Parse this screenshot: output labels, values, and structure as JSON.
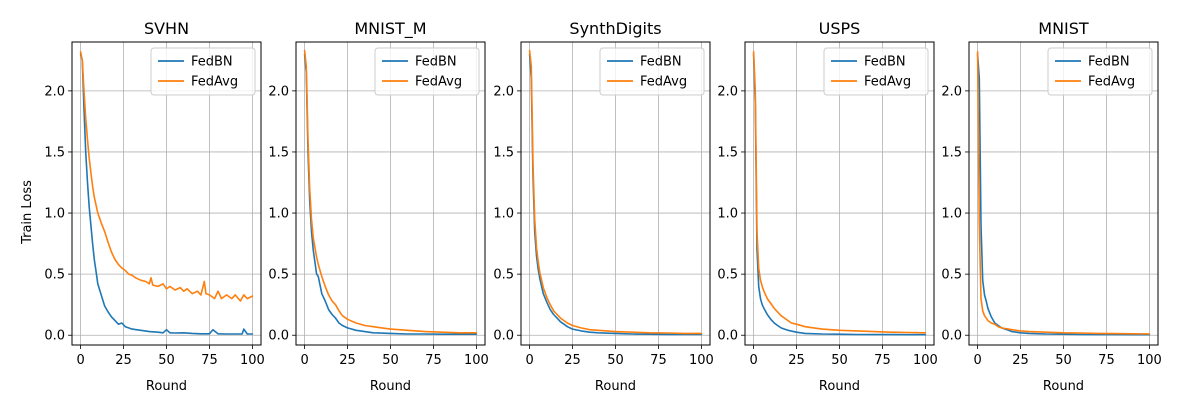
{
  "figure": {
    "ylabel": "Train Loss",
    "xlabel": "Round",
    "colors": {
      "FedBN": "#1f77b4",
      "FedAvg": "#ff7f0e"
    },
    "legend_placement": "top-right",
    "grid": true
  },
  "chart_data": [
    {
      "type": "line",
      "title": "SVHN",
      "xlabel": "Round",
      "ylabel": "Train Loss",
      "xlim": [
        -5,
        105
      ],
      "ylim": [
        -0.08,
        2.4
      ],
      "xticks": [
        0,
        25,
        50,
        75,
        100
      ],
      "yticks": [
        0.0,
        0.5,
        1.0,
        1.5,
        2.0
      ],
      "xtick_labels": [
        "0",
        "25",
        "50",
        "75",
        "100"
      ],
      "ytick_labels": [
        "0.0",
        "0.5",
        "1.0",
        "1.5",
        "2.0"
      ],
      "series": [
        {
          "name": "FedBN",
          "color": "#1f77b4",
          "x": [
            0,
            1,
            2,
            3,
            4,
            5,
            6,
            7,
            8,
            9,
            10,
            12,
            14,
            16,
            18,
            20,
            22,
            24,
            26,
            30,
            35,
            40,
            45,
            48,
            50,
            52,
            55,
            60,
            65,
            70,
            75,
            77,
            80,
            85,
            90,
            94,
            95,
            97,
            100
          ],
          "y": [
            2.3,
            2.25,
            1.85,
            1.5,
            1.25,
            1.05,
            0.9,
            0.75,
            0.62,
            0.52,
            0.42,
            0.33,
            0.24,
            0.19,
            0.15,
            0.12,
            0.09,
            0.1,
            0.07,
            0.05,
            0.04,
            0.03,
            0.025,
            0.02,
            0.045,
            0.02,
            0.018,
            0.02,
            0.015,
            0.012,
            0.012,
            0.045,
            0.012,
            0.01,
            0.01,
            0.01,
            0.05,
            0.01,
            0.01
          ]
        },
        {
          "name": "FedAvg",
          "color": "#ff7f0e",
          "x": [
            0,
            1,
            2,
            3,
            4,
            5,
            6,
            7,
            8,
            10,
            12,
            14,
            16,
            18,
            20,
            22,
            24,
            26,
            28,
            30,
            32,
            35,
            38,
            40,
            41,
            42,
            45,
            48,
            50,
            52,
            55,
            58,
            60,
            62,
            65,
            68,
            70,
            72,
            73,
            75,
            78,
            80,
            82,
            85,
            88,
            90,
            93,
            95,
            97,
            100
          ],
          "y": [
            2.32,
            2.25,
            2.0,
            1.78,
            1.6,
            1.45,
            1.33,
            1.22,
            1.13,
            1.0,
            0.92,
            0.85,
            0.76,
            0.68,
            0.62,
            0.58,
            0.55,
            0.53,
            0.5,
            0.49,
            0.47,
            0.45,
            0.44,
            0.42,
            0.47,
            0.41,
            0.4,
            0.42,
            0.38,
            0.4,
            0.37,
            0.39,
            0.36,
            0.38,
            0.34,
            0.36,
            0.33,
            0.44,
            0.34,
            0.33,
            0.3,
            0.36,
            0.3,
            0.33,
            0.3,
            0.33,
            0.28,
            0.33,
            0.3,
            0.32
          ]
        }
      ]
    },
    {
      "type": "line",
      "title": "MNIST_M",
      "xlabel": "Round",
      "ylabel": "",
      "xlim": [
        -5,
        105
      ],
      "ylim": [
        -0.08,
        2.4
      ],
      "xticks": [
        0,
        25,
        50,
        75,
        100
      ],
      "yticks": [
        0.0,
        0.5,
        1.0,
        1.5,
        2.0
      ],
      "xtick_labels": [
        "0",
        "25",
        "50",
        "75",
        "100"
      ],
      "ytick_labels": [
        "0.0",
        "0.5",
        "1.0",
        "1.5",
        "2.0"
      ],
      "series": [
        {
          "name": "FedBN",
          "color": "#1f77b4",
          "x": [
            0,
            1,
            2,
            3,
            4,
            5,
            6,
            7,
            8,
            10,
            12,
            14,
            16,
            18,
            20,
            22,
            25,
            30,
            35,
            40,
            50,
            60,
            70,
            80,
            90,
            100
          ],
          "y": [
            2.3,
            2.15,
            1.5,
            1.1,
            0.85,
            0.7,
            0.6,
            0.5,
            0.48,
            0.34,
            0.28,
            0.21,
            0.17,
            0.14,
            0.1,
            0.08,
            0.06,
            0.04,
            0.03,
            0.02,
            0.015,
            0.01,
            0.01,
            0.008,
            0.008,
            0.008
          ]
        },
        {
          "name": "FedAvg",
          "color": "#ff7f0e",
          "x": [
            0,
            1,
            2,
            3,
            4,
            5,
            6,
            7,
            8,
            10,
            12,
            14,
            16,
            18,
            20,
            22,
            25,
            30,
            35,
            40,
            45,
            50,
            60,
            70,
            80,
            90,
            95,
            100
          ],
          "y": [
            2.33,
            2.2,
            1.6,
            1.2,
            0.95,
            0.8,
            0.72,
            0.64,
            0.58,
            0.48,
            0.4,
            0.33,
            0.28,
            0.25,
            0.2,
            0.16,
            0.13,
            0.1,
            0.08,
            0.07,
            0.06,
            0.05,
            0.04,
            0.03,
            0.025,
            0.02,
            0.02,
            0.02
          ]
        }
      ]
    },
    {
      "type": "line",
      "title": "SynthDigits",
      "xlabel": "Round",
      "ylabel": "",
      "xlim": [
        -5,
        105
      ],
      "ylim": [
        -0.08,
        2.4
      ],
      "xticks": [
        0,
        25,
        50,
        75,
        100
      ],
      "yticks": [
        0.0,
        0.5,
        1.0,
        1.5,
        2.0
      ],
      "xtick_labels": [
        "0",
        "25",
        "50",
        "75",
        "100"
      ],
      "ytick_labels": [
        "0.0",
        "0.5",
        "1.0",
        "1.5",
        "2.0"
      ],
      "series": [
        {
          "name": "FedBN",
          "color": "#1f77b4",
          "x": [
            0,
            1,
            2,
            3,
            4,
            5,
            6,
            7,
            8,
            10,
            12,
            14,
            16,
            18,
            20,
            22,
            25,
            30,
            35,
            40,
            50,
            60,
            70,
            80,
            90,
            100
          ],
          "y": [
            2.3,
            2.1,
            1.3,
            0.85,
            0.65,
            0.54,
            0.46,
            0.4,
            0.34,
            0.27,
            0.21,
            0.17,
            0.14,
            0.11,
            0.09,
            0.07,
            0.05,
            0.035,
            0.025,
            0.02,
            0.015,
            0.01,
            0.008,
            0.007,
            0.006,
            0.006
          ]
        },
        {
          "name": "FedAvg",
          "color": "#ff7f0e",
          "x": [
            0,
            1,
            2,
            3,
            4,
            5,
            6,
            7,
            8,
            10,
            12,
            14,
            16,
            18,
            20,
            22,
            25,
            30,
            35,
            40,
            50,
            60,
            70,
            80,
            90,
            100
          ],
          "y": [
            2.33,
            2.2,
            1.4,
            0.95,
            0.72,
            0.6,
            0.51,
            0.45,
            0.39,
            0.31,
            0.25,
            0.2,
            0.17,
            0.14,
            0.12,
            0.1,
            0.08,
            0.06,
            0.045,
            0.04,
            0.03,
            0.025,
            0.02,
            0.018,
            0.015,
            0.015
          ]
        }
      ]
    },
    {
      "type": "line",
      "title": "USPS",
      "xlabel": "Round",
      "ylabel": "",
      "xlim": [
        -5,
        105
      ],
      "ylim": [
        -0.08,
        2.4
      ],
      "xticks": [
        0,
        25,
        50,
        75,
        100
      ],
      "yticks": [
        0.0,
        0.5,
        1.0,
        1.5,
        2.0
      ],
      "xtick_labels": [
        "0",
        "25",
        "50",
        "75",
        "100"
      ],
      "ytick_labels": [
        "0.0",
        "0.5",
        "1.0",
        "1.5",
        "2.0"
      ],
      "series": [
        {
          "name": "FedBN",
          "color": "#1f77b4",
          "x": [
            0,
            1,
            2,
            3,
            4,
            5,
            6,
            8,
            10,
            12,
            14,
            16,
            18,
            20,
            25,
            30,
            40,
            50,
            60,
            70,
            80,
            90,
            100
          ],
          "y": [
            2.3,
            1.9,
            0.7,
            0.4,
            0.3,
            0.25,
            0.22,
            0.17,
            0.13,
            0.1,
            0.08,
            0.06,
            0.05,
            0.04,
            0.025,
            0.015,
            0.01,
            0.008,
            0.006,
            0.005,
            0.005,
            0.004,
            0.004
          ]
        },
        {
          "name": "FedAvg",
          "color": "#ff7f0e",
          "x": [
            0,
            1,
            2,
            3,
            4,
            5,
            6,
            8,
            10,
            12,
            14,
            16,
            18,
            20,
            22,
            25,
            30,
            35,
            40,
            50,
            60,
            70,
            80,
            90,
            100
          ],
          "y": [
            2.32,
            2.0,
            0.85,
            0.55,
            0.45,
            0.4,
            0.36,
            0.3,
            0.26,
            0.22,
            0.19,
            0.16,
            0.14,
            0.12,
            0.1,
            0.09,
            0.07,
            0.06,
            0.05,
            0.04,
            0.035,
            0.03,
            0.025,
            0.022,
            0.02
          ]
        }
      ]
    },
    {
      "type": "line",
      "title": "MNIST",
      "xlabel": "Round",
      "ylabel": "",
      "xlim": [
        -5,
        105
      ],
      "ylim": [
        -0.08,
        2.4
      ],
      "xticks": [
        0,
        25,
        50,
        75,
        100
      ],
      "yticks": [
        0.0,
        0.5,
        1.0,
        1.5,
        2.0
      ],
      "xtick_labels": [
        "0",
        "25",
        "50",
        "75",
        "100"
      ],
      "ytick_labels": [
        "0.0",
        "0.5",
        "1.0",
        "1.5",
        "2.0"
      ],
      "series": [
        {
          "name": "FedBN",
          "color": "#1f77b4",
          "x": [
            0,
            1,
            2,
            3,
            4,
            5,
            6,
            8,
            10,
            12,
            14,
            16,
            18,
            20,
            25,
            30,
            40,
            50,
            60,
            70,
            80,
            90,
            100
          ],
          "y": [
            2.3,
            2.1,
            0.9,
            0.45,
            0.33,
            0.28,
            0.22,
            0.15,
            0.1,
            0.08,
            0.06,
            0.05,
            0.04,
            0.03,
            0.02,
            0.015,
            0.01,
            0.008,
            0.006,
            0.005,
            0.005,
            0.004,
            0.004
          ]
        },
        {
          "name": "FedAvg",
          "color": "#ff7f0e",
          "x": [
            0,
            1,
            2,
            3,
            4,
            5,
            6,
            8,
            10,
            12,
            14,
            16,
            18,
            20,
            25,
            30,
            40,
            50,
            60,
            70,
            80,
            90,
            100
          ],
          "y": [
            2.32,
            0.9,
            0.3,
            0.2,
            0.16,
            0.14,
            0.12,
            0.1,
            0.09,
            0.07,
            0.06,
            0.055,
            0.05,
            0.045,
            0.035,
            0.03,
            0.025,
            0.02,
            0.018,
            0.015,
            0.013,
            0.012,
            0.011
          ]
        }
      ]
    }
  ]
}
